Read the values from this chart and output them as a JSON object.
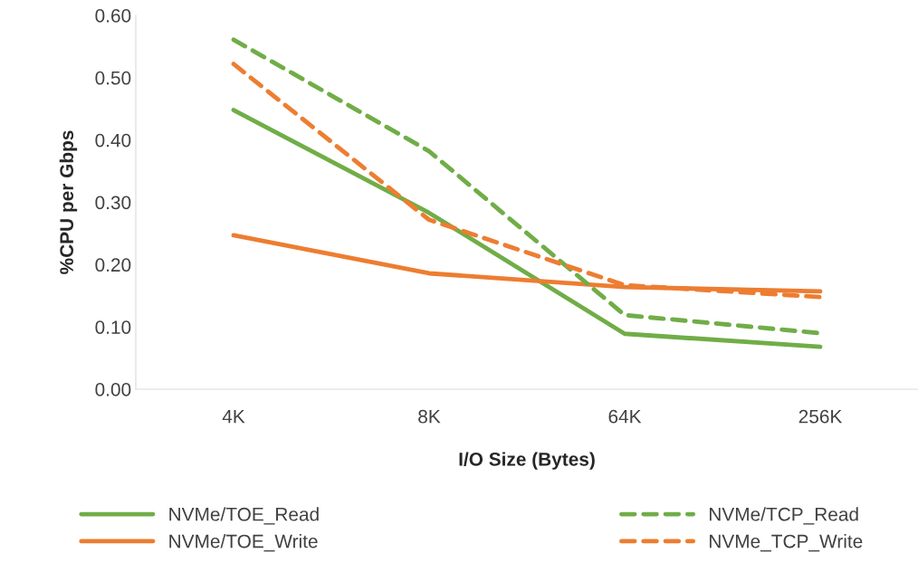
{
  "chart_data": {
    "type": "line",
    "xlabel": "I/O Size (Bytes)",
    "ylabel": "%CPU per Gbps",
    "categories": [
      "4K",
      "8K",
      "64K",
      "256K"
    ],
    "ylim": [
      0,
      0.6
    ],
    "yticks": [
      {
        "value": 0,
        "label": "0.00"
      },
      {
        "value": 0.1,
        "label": "0.10"
      },
      {
        "value": 0.2,
        "label": "0.20"
      },
      {
        "value": 0.3,
        "label": "0.30"
      },
      {
        "value": 0.4,
        "label": "0.40"
      },
      {
        "value": 0.5,
        "label": "0.50"
      },
      {
        "value": 0.6,
        "label": "0.60"
      }
    ],
    "grid": false,
    "legend": "bottom",
    "marker": "none",
    "series": [
      {
        "name": "NVMe/TOE_Read",
        "color": "#70ad47",
        "line_style": "solid",
        "values": [
          0.448,
          0.283,
          0.089,
          0.068
        ]
      },
      {
        "name": "NVMe/TOE_Write",
        "color": "#ed7d31",
        "line_style": "solid",
        "values": [
          0.247,
          0.186,
          0.164,
          0.157
        ]
      },
      {
        "name": "NVMe/TCP_Read",
        "color": "#70ad47",
        "line_style": "dashed",
        "values": [
          0.561,
          0.382,
          0.119,
          0.09
        ]
      },
      {
        "name": "NVMe_TCP_Write",
        "color": "#ed7d31",
        "line_style": "dashed",
        "values": [
          0.522,
          0.272,
          0.167,
          0.148
        ]
      }
    ]
  }
}
